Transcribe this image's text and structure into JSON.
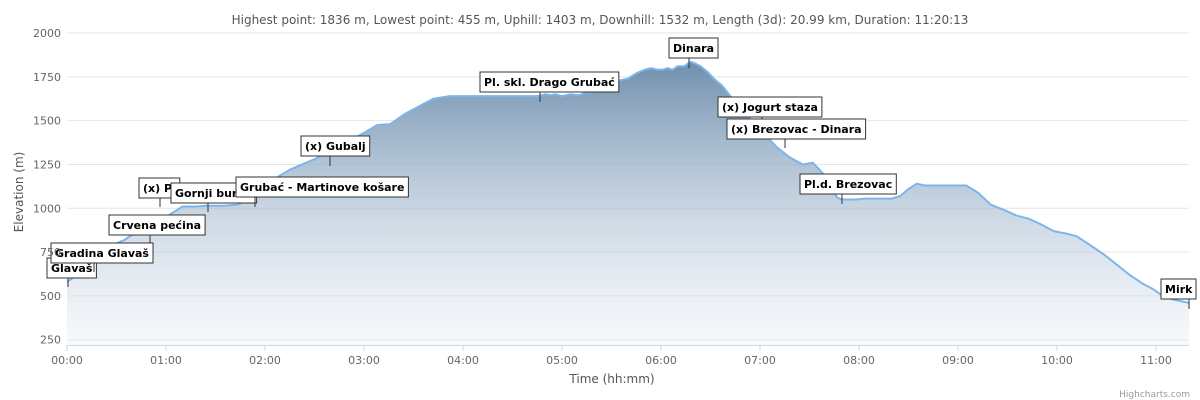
{
  "chart_data": {
    "type": "area",
    "title": "Highest point: 1836 m, Lowest point: 455 m, Uphill: 1403 m, Downhill: 1532 m, Length (3d): 20.99 km, Duration: 11:20:13",
    "xlabel": "Time (hh:mm)",
    "ylabel": "Elevation (m)",
    "xlim": [
      0,
      680
    ],
    "ylim": [
      220,
      2000
    ],
    "y_ticks": [
      250,
      500,
      750,
      1000,
      1250,
      1500,
      1750,
      2000
    ],
    "x_ticks": [
      {
        "value": 0,
        "label": "00:00"
      },
      {
        "value": 60,
        "label": "01:00"
      },
      {
        "value": 120,
        "label": "02:00"
      },
      {
        "value": 180,
        "label": "03:00"
      },
      {
        "value": 240,
        "label": "04:00"
      },
      {
        "value": 300,
        "label": "05:00"
      },
      {
        "value": 360,
        "label": "06:00"
      },
      {
        "value": 420,
        "label": "07:00"
      },
      {
        "value": 480,
        "label": "08:00"
      },
      {
        "value": 540,
        "label": "09:00"
      },
      {
        "value": 600,
        "label": "10:00"
      },
      {
        "value": 660,
        "label": "11:00"
      }
    ],
    "series": [
      {
        "x": [
          0,
          3,
          8,
          12,
          17,
          20,
          25,
          30,
          35,
          38,
          42,
          45,
          50,
          55,
          60,
          65,
          70,
          78,
          84,
          90,
          95,
          103,
          108,
          112,
          114,
          118,
          123,
          128,
          135,
          140,
          150,
          160,
          165,
          172,
          180,
          188,
          196,
          205,
          215,
          222,
          232,
          242,
          248,
          255,
          262,
          275,
          285,
          290,
          293,
          296,
          300,
          305,
          310,
          315,
          320,
          325,
          330,
          335,
          340,
          345,
          350,
          354,
          358,
          361,
          364,
          367,
          370,
          374,
          378,
          381,
          384,
          388,
          392,
          397,
          402,
          408,
          414,
          419,
          425,
          430,
          438,
          446,
          452,
          458,
          461,
          464,
          467,
          470,
          474,
          478,
          484,
          492,
          500,
          505,
          510,
          515,
          520,
          530,
          540,
          545,
          552,
          560,
          568,
          575,
          583,
          590,
          598,
          606,
          612,
          620,
          628,
          636,
          644,
          652,
          658,
          664,
          670,
          675,
          680
        ],
        "y": [
          580,
          600,
          650,
          680,
          720,
          750,
          770,
          800,
          820,
          840,
          860,
          880,
          900,
          930,
          950,
          980,
          1010,
          1010,
          1015,
          1015,
          1015,
          1020,
          1040,
          1060,
          1080,
          1120,
          1150,
          1180,
          1220,
          1240,
          1280,
          1330,
          1340,
          1390,
          1430,
          1475,
          1480,
          1540,
          1590,
          1625,
          1640,
          1640,
          1640,
          1640,
          1640,
          1640,
          1640,
          1650,
          1645,
          1650,
          1640,
          1650,
          1645,
          1660,
          1665,
          1680,
          1700,
          1730,
          1740,
          1770,
          1790,
          1800,
          1790,
          1790,
          1800,
          1790,
          1810,
          1810,
          1836,
          1825,
          1810,
          1780,
          1740,
          1700,
          1640,
          1580,
          1510,
          1460,
          1400,
          1350,
          1290,
          1250,
          1260,
          1200,
          1150,
          1100,
          1060,
          1050,
          1050,
          1050,
          1055,
          1055,
          1055,
          1070,
          1110,
          1140,
          1130,
          1130,
          1130,
          1130,
          1090,
          1020,
          990,
          960,
          940,
          910,
          870,
          855,
          840,
          790,
          740,
          680,
          620,
          570,
          540,
          500,
          480,
          470,
          460
        ]
      }
    ],
    "annotations": [
      {
        "label": "Glavaš",
        "x": 0,
        "y": 580
      },
      {
        "label": "Gradina Glavaš",
        "x": 17,
        "y": 710
      },
      {
        "label": "Crvena pećina",
        "x": 50,
        "y": 860
      },
      {
        "label": "(x) Pl",
        "x": 72,
        "y": 1010
      },
      {
        "label": "Gornji bunar",
        "x": 85,
        "y": 1010
      },
      {
        "label": "Grubać - Martinove košare",
        "x": 113,
        "y": 1060
      },
      {
        "label": "(x) Gubalj",
        "x": 160,
        "y": 1330
      },
      {
        "label": "Pl. skl. Drago Grubać",
        "x": 287,
        "y": 1640
      },
      {
        "label": "Dinara",
        "x": 378,
        "y": 1836
      },
      {
        "label": "(x) Jogurt staza",
        "x": 420,
        "y": 1620
      },
      {
        "label": "(x) Brezovac - Dinara",
        "x": 437,
        "y": 1360
      },
      {
        "label": "Pl.d. Brezovac",
        "x": 469,
        "y": 1050
      },
      {
        "label": "Mirk",
        "x": 680,
        "y": 460
      }
    ]
  },
  "credits": "Highcharts.com"
}
